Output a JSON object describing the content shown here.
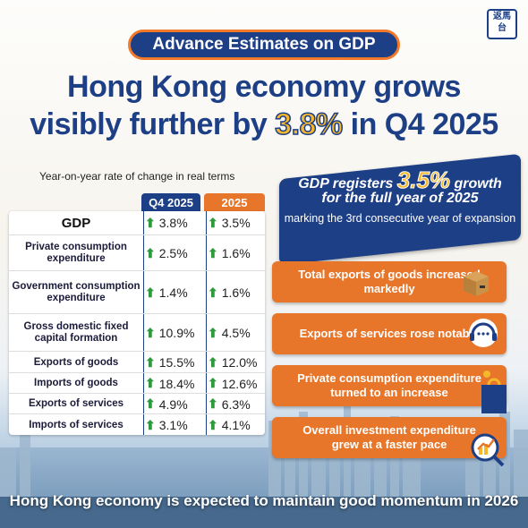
{
  "logo": {
    "text_line1": "返馬",
    "text_line2": "台"
  },
  "tag": "Advance Estimates on GDP",
  "headline": {
    "line1": "Hong Kong economy grows",
    "line2_pre": "visibly further by ",
    "line2_highlight": "3.8%",
    "line2_post": " in Q4 2025"
  },
  "table": {
    "caption": "Year-on-year rate of change in real terms",
    "col_q4": "Q4 2025",
    "col_year": "2025",
    "rows": [
      {
        "label": "GDP",
        "q4": "3.8%",
        "year": "3.5%"
      },
      {
        "label": "Private consumption expenditure",
        "q4": "2.5%",
        "year": "1.6%"
      },
      {
        "label": "Government consumption expenditure",
        "q4": "1.4%",
        "year": "1.6%"
      },
      {
        "label": "Gross domestic fixed capital formation",
        "q4": "10.9%",
        "year": "4.5%"
      },
      {
        "label": "Exports of goods",
        "q4": "15.5%",
        "year": "12.0%"
      },
      {
        "label": "Imports of goods",
        "q4": "18.4%",
        "year": "12.6%"
      },
      {
        "label": "Exports of services",
        "q4": "4.9%",
        "year": "6.3%"
      },
      {
        "label": "Imports of services",
        "q4": "3.1%",
        "year": "4.1%"
      }
    ]
  },
  "highlight_box": {
    "line1_pre": "GDP registers ",
    "line1_big": "3.5%",
    "line1_post": " growth",
    "line2": "for the full year of 2025",
    "line3": "marking the 3rd consecutive year of expansion"
  },
  "banners": [
    {
      "text": "Total exports of goods increased markedly",
      "icon": "box-icon"
    },
    {
      "text": "Exports of services rose notably",
      "icon": "headset-icon"
    },
    {
      "text": "Private consumption expenditure turned to an increase",
      "icon": "shopping-bag-icon"
    },
    {
      "text": "Overall investment expenditure grew at a faster pace",
      "icon": "growth-chart-icon"
    }
  ],
  "footer": "Hong Kong economy is expected to maintain good momentum in 2026",
  "colors": {
    "navy": "#1d3f86",
    "orange": "#e8762a",
    "yellow": "#f5b72b",
    "green": "#2d9a3c"
  }
}
